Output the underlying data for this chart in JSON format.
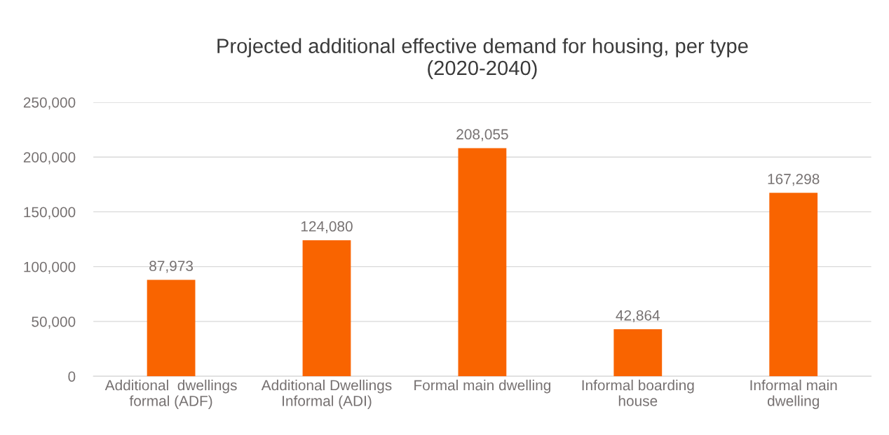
{
  "chart_data": {
    "type": "bar",
    "title": "Projected additional effective demand for housing, per type\n(2020-2040)",
    "categories": [
      "Additional  dwellings\nformal (ADF)",
      "Additional Dwellings\nInformal (ADI)",
      "Formal main dwelling",
      "Informal boarding\nhouse",
      "Informal main\ndwelling"
    ],
    "values": [
      87973,
      124080,
      208055,
      42864,
      167298
    ],
    "value_labels": [
      "87,973",
      "124,080",
      "208,055",
      "42,864",
      "167,298"
    ],
    "color": "#f96400",
    "ylim": [
      0,
      250000
    ],
    "yticks": [
      0,
      {
        "value": 50000,
        "label": "50,000"
      },
      {
        "value": 100000,
        "label": "100,000"
      },
      {
        "value": 150000,
        "label": "150,000"
      },
      {
        "value": 200000,
        "label": "200,000"
      },
      {
        "value": 250000,
        "label": "250,000"
      }
    ],
    "grid": "y"
  }
}
